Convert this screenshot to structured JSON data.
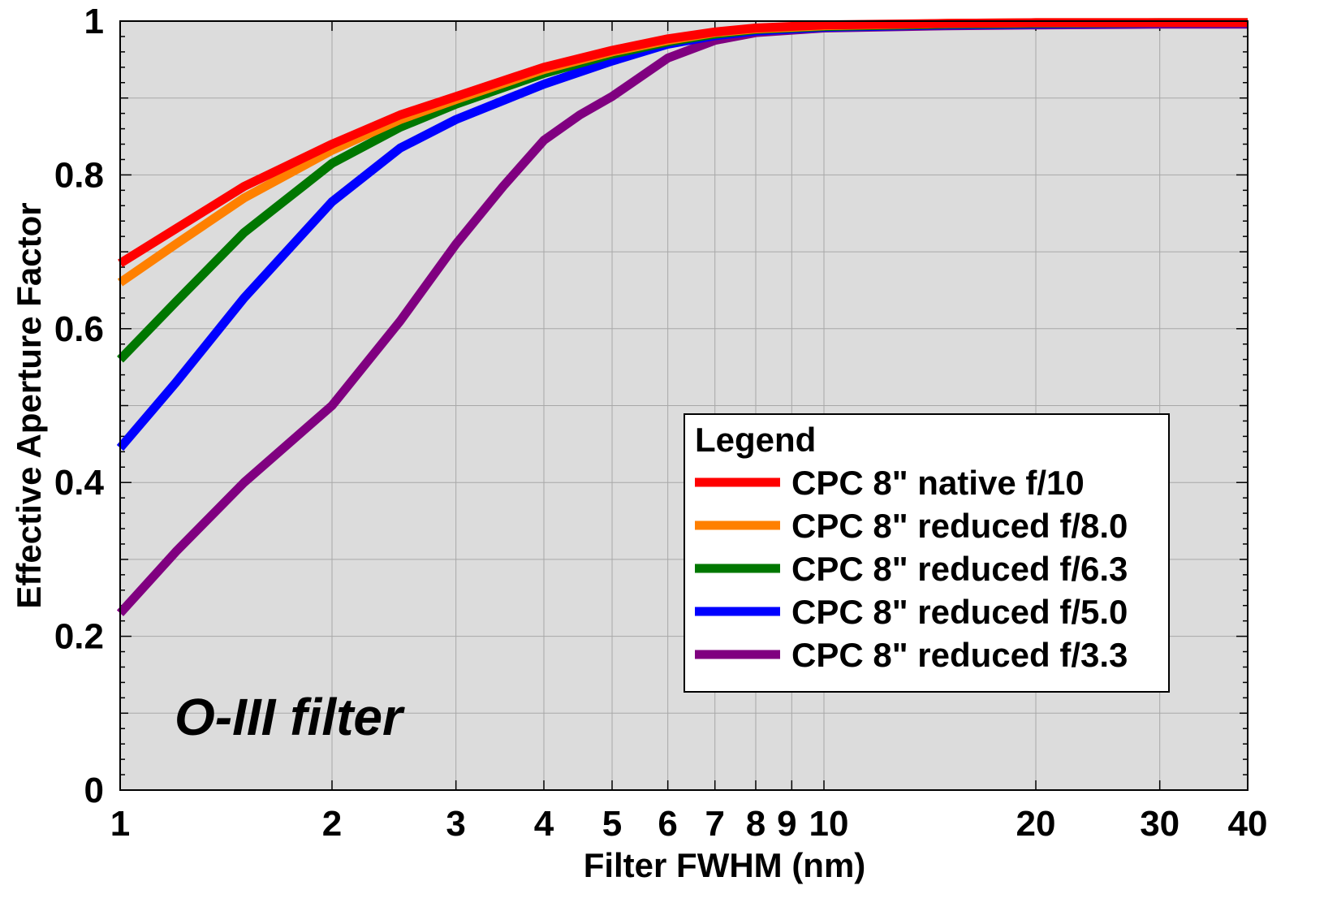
{
  "chart_data": {
    "type": "line",
    "title": "",
    "xlabel": "Filter FWHM (nm)",
    "ylabel": "Effective Aperture Factor",
    "xscale": "log",
    "xlim": [
      1,
      40
    ],
    "ylim": [
      0,
      1
    ],
    "x_ticks": [
      1,
      2,
      3,
      4,
      5,
      6,
      7,
      8,
      9,
      10,
      20,
      30,
      40
    ],
    "x_tick_labels": [
      "1",
      "2",
      "3",
      "4",
      "5",
      "6",
      "7",
      "8",
      "9",
      "10",
      "20",
      "30",
      "40"
    ],
    "y_ticks": [
      0,
      0.2,
      0.4,
      0.6,
      0.8,
      1
    ],
    "y_tick_labels": [
      "0",
      "0.2",
      "0.4",
      "0.6",
      "0.8",
      "1"
    ],
    "grid": true,
    "background": "#dcdcdc",
    "annotation": "O-III filter",
    "legend": {
      "title": "Legend",
      "placement": "lower-right"
    },
    "series": [
      {
        "name": "CPC 8\" native f/10",
        "color": "#ff0000",
        "x": [
          1,
          1.2,
          1.5,
          2,
          2.5,
          3,
          4,
          5,
          6,
          7,
          8,
          10,
          15,
          20,
          30,
          40
        ],
        "y": [
          0.685,
          0.73,
          0.785,
          0.84,
          0.878,
          0.902,
          0.94,
          0.962,
          0.977,
          0.986,
          0.991,
          0.995,
          0.997,
          0.998,
          0.998,
          0.998
        ]
      },
      {
        "name": "CPC 8\" reduced f/8.0",
        "color": "#ff8000",
        "x": [
          1,
          1.2,
          1.5,
          2,
          2.5,
          3,
          4,
          5,
          6,
          7,
          8,
          10,
          15,
          20,
          30,
          40
        ],
        "y": [
          0.66,
          0.71,
          0.77,
          0.832,
          0.872,
          0.898,
          0.937,
          0.96,
          0.975,
          0.985,
          0.99,
          0.994,
          0.997,
          0.998,
          0.998,
          0.998
        ]
      },
      {
        "name": "CPC 8\" reduced f/6.3",
        "color": "#007700",
        "x": [
          1,
          1.2,
          1.5,
          2,
          2.5,
          3,
          4,
          5,
          6,
          7,
          8,
          10,
          15,
          20,
          30,
          40
        ],
        "y": [
          0.56,
          0.635,
          0.725,
          0.815,
          0.862,
          0.892,
          0.932,
          0.957,
          0.973,
          0.983,
          0.989,
          0.993,
          0.996,
          0.997,
          0.998,
          0.998
        ]
      },
      {
        "name": "CPC 8\" reduced f/5.0",
        "color": "#0000ff",
        "x": [
          1,
          1.2,
          1.5,
          2,
          2.5,
          3,
          4,
          5,
          6,
          7,
          8,
          10,
          15,
          20,
          30,
          40
        ],
        "y": [
          0.445,
          0.53,
          0.64,
          0.765,
          0.835,
          0.872,
          0.918,
          0.948,
          0.97,
          0.981,
          0.987,
          0.992,
          0.995,
          0.996,
          0.997,
          0.997
        ]
      },
      {
        "name": "CPC 8\" reduced f/3.3",
        "color": "#800080",
        "x": [
          1,
          1.2,
          1.5,
          2,
          2.5,
          3,
          3.5,
          4,
          4.5,
          5,
          6,
          7,
          8,
          10,
          15,
          20,
          30,
          40
        ],
        "y": [
          0.23,
          0.31,
          0.4,
          0.5,
          0.61,
          0.71,
          0.785,
          0.845,
          0.878,
          0.902,
          0.952,
          0.975,
          0.985,
          0.991,
          0.994,
          0.995,
          0.996,
          0.996
        ]
      }
    ]
  }
}
